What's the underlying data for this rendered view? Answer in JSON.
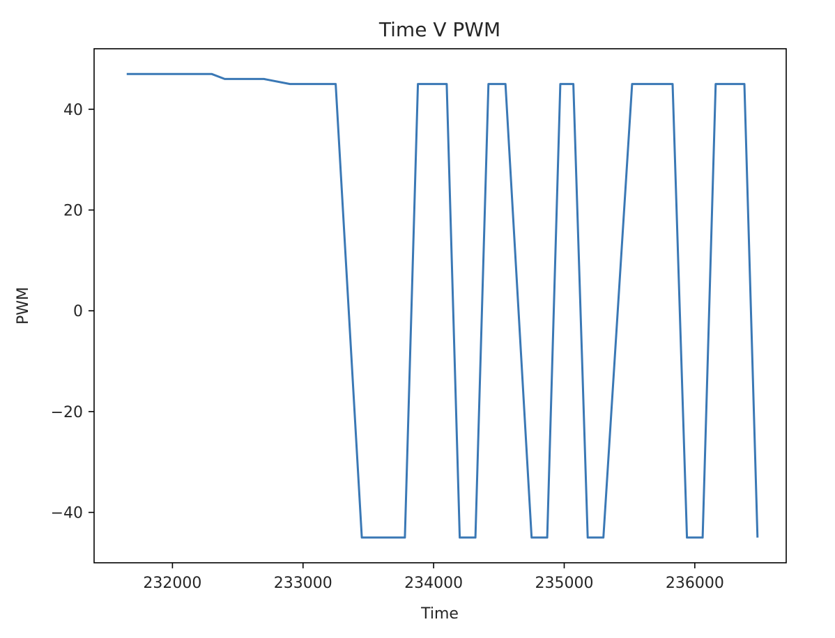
{
  "chart_data": {
    "type": "line",
    "title": "Time V PWM",
    "xlabel": "Time",
    "ylabel": "PWM",
    "xlim": [
      231400,
      236700
    ],
    "ylim": [
      -50,
      52
    ],
    "xticks": [
      232000,
      233000,
      234000,
      235000,
      236000
    ],
    "yticks": [
      -40,
      -20,
      0,
      20,
      40
    ],
    "xtick_labels": [
      "232000",
      "233000",
      "234000",
      "235000",
      "236000"
    ],
    "ytick_labels": [
      "−40",
      "−20",
      "0",
      "20",
      "40"
    ],
    "grid": false,
    "line_color": "#3a78b5",
    "series": [
      {
        "x": [
          231650,
          232300,
          232400,
          232700,
          232900,
          233250,
          233450,
          233780,
          233880,
          234100,
          234200,
          234320,
          234420,
          234550,
          234750,
          234870,
          234970,
          235070,
          235180,
          235300,
          235520,
          235830,
          235940,
          236060,
          236160,
          236380,
          236480
        ],
        "y": [
          47,
          47,
          46,
          46,
          45,
          45,
          -45,
          -45,
          45,
          45,
          -45,
          -45,
          45,
          45,
          -45,
          -45,
          45,
          45,
          -45,
          -45,
          45,
          45,
          -45,
          -45,
          45,
          45,
          -45
        ]
      }
    ]
  }
}
